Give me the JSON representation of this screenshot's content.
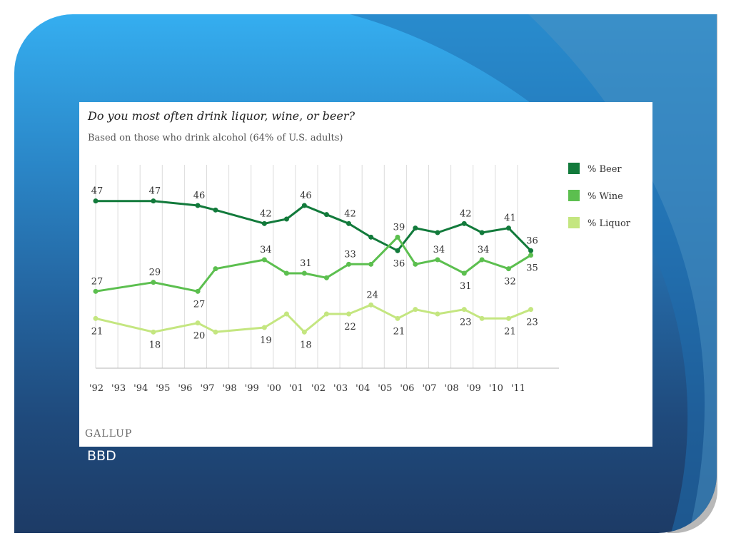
{
  "slide": {
    "caption": "BBD"
  },
  "chart_data": {
    "type": "line",
    "title": "Do you most often drink liquor, wine, or beer?",
    "subtitle": "Based on those who drink alcohol (64% of U.S. adults)",
    "source": "GALLUP",
    "xlabel": "",
    "ylabel": "",
    "x_ticks": [
      "'92",
      "'93",
      "'94",
      "'95",
      "'96",
      "'97",
      "'98",
      "'99",
      "'00",
      "'01",
      "'02",
      "'03",
      "'04",
      "'05",
      "'06",
      "'07",
      "'08",
      "'09",
      "'10",
      "'11"
    ],
    "ylim": [
      10,
      55
    ],
    "grid": "vertical",
    "legend": "right",
    "series": [
      {
        "name": "% Beer",
        "color": "#127a3b",
        "points": [
          {
            "x": 1992.0,
            "y": 47,
            "label": "47",
            "pos": "above"
          },
          {
            "x": 1994.6,
            "y": 47,
            "label": "47",
            "pos": "above"
          },
          {
            "x": 1996.6,
            "y": 46,
            "label": "46",
            "pos": "above"
          },
          {
            "x": 1997.4,
            "y": 45
          },
          {
            "x": 1999.6,
            "y": 42,
            "label": "42",
            "pos": "above"
          },
          {
            "x": 2000.6,
            "y": 43
          },
          {
            "x": 2001.4,
            "y": 46,
            "label": "46",
            "pos": "above"
          },
          {
            "x": 2002.4,
            "y": 44
          },
          {
            "x": 2003.4,
            "y": 42,
            "label": "42",
            "pos": "above"
          },
          {
            "x": 2004.4,
            "y": 39
          },
          {
            "x": 2005.6,
            "y": 36,
            "label": "36",
            "pos": "below"
          },
          {
            "x": 2006.4,
            "y": 41
          },
          {
            "x": 2007.4,
            "y": 40
          },
          {
            "x": 2008.6,
            "y": 42,
            "label": "42",
            "pos": "above"
          },
          {
            "x": 2009.4,
            "y": 40
          },
          {
            "x": 2010.6,
            "y": 41,
            "label": "41",
            "pos": "above"
          },
          {
            "x": 2011.6,
            "y": 36,
            "label": "36",
            "pos": "above"
          }
        ]
      },
      {
        "name": "% Wine",
        "color": "#5cbf4f",
        "points": [
          {
            "x": 1992.0,
            "y": 27,
            "label": "27",
            "pos": "above"
          },
          {
            "x": 1994.6,
            "y": 29,
            "label": "29",
            "pos": "above"
          },
          {
            "x": 1996.6,
            "y": 27,
            "label": "27",
            "pos": "below"
          },
          {
            "x": 1997.4,
            "y": 32
          },
          {
            "x": 1999.6,
            "y": 34,
            "label": "34",
            "pos": "above"
          },
          {
            "x": 2000.6,
            "y": 31
          },
          {
            "x": 2001.4,
            "y": 31,
            "label": "31",
            "pos": "above"
          },
          {
            "x": 2002.4,
            "y": 30
          },
          {
            "x": 2003.4,
            "y": 33,
            "label": "33",
            "pos": "above"
          },
          {
            "x": 2004.4,
            "y": 33
          },
          {
            "x": 2005.6,
            "y": 39,
            "label": "39",
            "pos": "above"
          },
          {
            "x": 2006.4,
            "y": 33
          },
          {
            "x": 2007.4,
            "y": 34,
            "label": "34",
            "pos": "above"
          },
          {
            "x": 2008.6,
            "y": 31,
            "label": "31",
            "pos": "below"
          },
          {
            "x": 2009.4,
            "y": 34,
            "label": "34",
            "pos": "above"
          },
          {
            "x": 2010.6,
            "y": 32,
            "label": "32",
            "pos": "below"
          },
          {
            "x": 2011.6,
            "y": 35,
            "label": "35",
            "pos": "below"
          }
        ]
      },
      {
        "name": "% Liquor",
        "color": "#c4e680",
        "points": [
          {
            "x": 1992.0,
            "y": 21,
            "label": "21",
            "pos": "below"
          },
          {
            "x": 1994.6,
            "y": 18,
            "label": "18",
            "pos": "below"
          },
          {
            "x": 1996.6,
            "y": 20,
            "label": "20",
            "pos": "below"
          },
          {
            "x": 1997.4,
            "y": 18
          },
          {
            "x": 1999.6,
            "y": 19,
            "label": "19",
            "pos": "below"
          },
          {
            "x": 2000.6,
            "y": 22
          },
          {
            "x": 2001.4,
            "y": 18,
            "label": "18",
            "pos": "below"
          },
          {
            "x": 2002.4,
            "y": 22
          },
          {
            "x": 2003.4,
            "y": 22,
            "label": "22",
            "pos": "below"
          },
          {
            "x": 2004.4,
            "y": 24,
            "label": "24",
            "pos": "above"
          },
          {
            "x": 2005.6,
            "y": 21,
            "label": "21",
            "pos": "below"
          },
          {
            "x": 2006.4,
            "y": 23
          },
          {
            "x": 2007.4,
            "y": 22
          },
          {
            "x": 2008.6,
            "y": 23,
            "label": "23",
            "pos": "below"
          },
          {
            "x": 2009.4,
            "y": 21
          },
          {
            "x": 2010.6,
            "y": 21,
            "label": "21",
            "pos": "below"
          },
          {
            "x": 2011.6,
            "y": 23,
            "label": "23",
            "pos": "below"
          }
        ]
      }
    ]
  }
}
